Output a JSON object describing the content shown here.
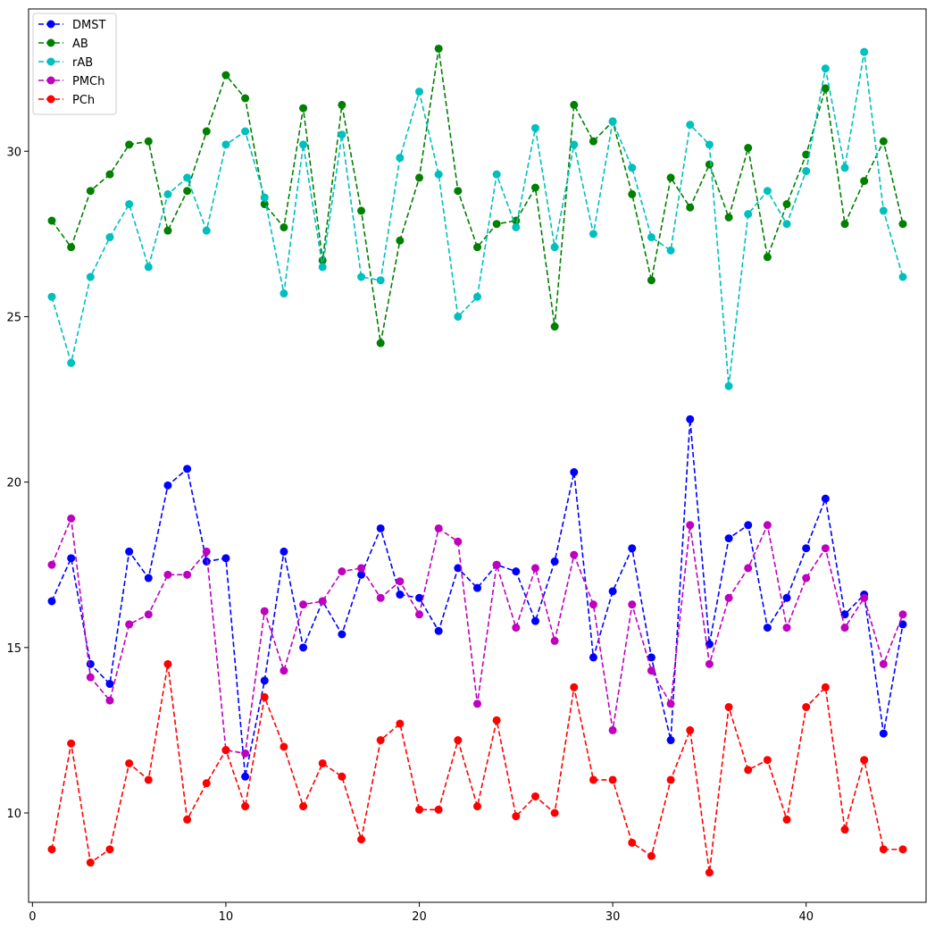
{
  "chart_data": {
    "type": "line",
    "title": "",
    "xlabel": "",
    "ylabel": "",
    "xlim": [
      -0.2,
      46.2
    ],
    "ylim": [
      7.3,
      34.3
    ],
    "x_ticks": [
      0,
      10,
      20,
      30,
      40
    ],
    "y_ticks": [
      10,
      15,
      20,
      25,
      30
    ],
    "grid": false,
    "legend_position": "top-left",
    "x": [
      1,
      2,
      3,
      4,
      5,
      6,
      7,
      8,
      9,
      10,
      11,
      12,
      13,
      14,
      15,
      16,
      17,
      18,
      19,
      20,
      21,
      22,
      23,
      24,
      25,
      26,
      27,
      28,
      29,
      30,
      31,
      32,
      33,
      34,
      35,
      36,
      37,
      38,
      39,
      40,
      41,
      42,
      43,
      44,
      45
    ],
    "series": [
      {
        "name": "DMST",
        "color": "#0000ff",
        "values": [
          16.4,
          17.7,
          14.5,
          13.9,
          17.9,
          17.1,
          19.9,
          20.4,
          17.6,
          17.7,
          11.1,
          14.0,
          17.9,
          15.0,
          16.4,
          15.4,
          17.2,
          18.6,
          16.6,
          16.5,
          15.5,
          17.4,
          16.8,
          17.5,
          17.3,
          15.8,
          17.6,
          20.3,
          14.7,
          16.7,
          18.0,
          14.7,
          12.2,
          21.9,
          15.1,
          18.3,
          18.7,
          15.6,
          16.5,
          18.0,
          19.5,
          16.0,
          16.6,
          12.4,
          15.7
        ]
      },
      {
        "name": "AB",
        "color": "#008000",
        "values": [
          27.9,
          27.1,
          28.8,
          29.3,
          30.2,
          30.3,
          27.6,
          28.8,
          30.6,
          32.3,
          31.6,
          28.4,
          27.7,
          31.3,
          26.7,
          31.4,
          28.2,
          24.2,
          27.3,
          29.2,
          33.1,
          28.8,
          27.1,
          27.8,
          27.9,
          28.9,
          24.7,
          31.4,
          30.3,
          30.9,
          28.7,
          26.1,
          29.2,
          28.3,
          29.6,
          28.0,
          30.1,
          26.8,
          28.4,
          29.9,
          31.9,
          27.8,
          29.1,
          30.3,
          27.8
        ]
      },
      {
        "name": "rAB",
        "color": "#00bfbf",
        "values": [
          25.6,
          23.6,
          26.2,
          27.4,
          28.4,
          26.5,
          28.7,
          29.2,
          27.6,
          30.2,
          30.6,
          28.6,
          25.7,
          30.2,
          26.5,
          30.5,
          26.2,
          26.1,
          29.8,
          31.8,
          29.3,
          25.0,
          25.6,
          29.3,
          27.7,
          30.7,
          27.1,
          30.2,
          27.5,
          30.9,
          29.5,
          27.4,
          27.0,
          30.8,
          30.2,
          22.9,
          28.1,
          28.8,
          27.8,
          29.4,
          32.5,
          29.5,
          33.0,
          28.2,
          26.2
        ]
      },
      {
        "name": "PMCh",
        "color": "#bf00bf",
        "values": [
          17.5,
          18.9,
          14.1,
          13.4,
          15.7,
          16.0,
          17.2,
          17.2,
          17.9,
          11.9,
          11.8,
          16.1,
          14.3,
          16.3,
          16.4,
          17.3,
          17.4,
          16.5,
          17.0,
          16.0,
          18.6,
          18.2,
          13.3,
          17.5,
          15.6,
          17.4,
          15.2,
          17.8,
          16.3,
          12.5,
          16.3,
          14.3,
          13.3,
          18.7,
          14.5,
          16.5,
          17.4,
          18.7,
          15.6,
          17.1,
          18.0,
          15.6,
          16.5,
          14.5,
          16.0
        ]
      },
      {
        "name": "PCh",
        "color": "#ff0000",
        "values": [
          8.9,
          12.1,
          8.5,
          8.9,
          11.5,
          11.0,
          14.5,
          9.8,
          10.9,
          11.9,
          10.2,
          13.5,
          12.0,
          10.2,
          11.5,
          11.1,
          9.2,
          12.2,
          12.7,
          10.1,
          10.1,
          12.2,
          10.2,
          12.8,
          9.9,
          10.5,
          10.0,
          13.8,
          11.0,
          11.0,
          9.1,
          8.7,
          11.0,
          12.5,
          8.2,
          13.2,
          11.3,
          11.6,
          9.8,
          13.2,
          13.8,
          9.5,
          11.6,
          8.9,
          8.9
        ]
      }
    ]
  }
}
